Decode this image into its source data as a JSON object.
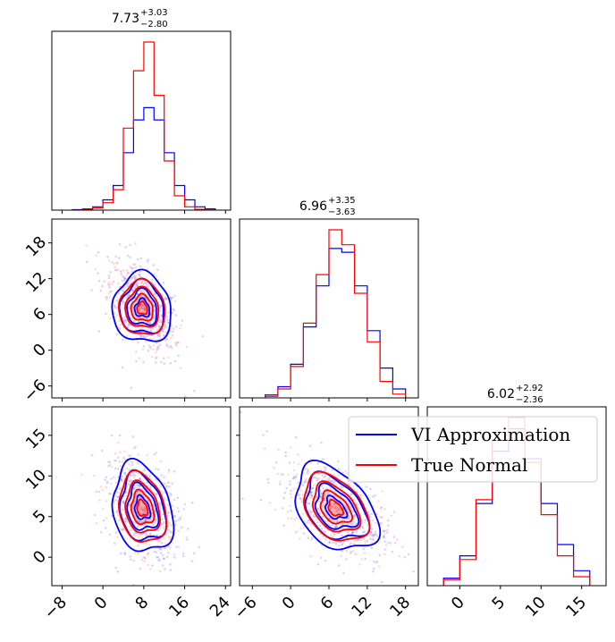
{
  "chart_data": {
    "type": "corner",
    "description_labels": {
      "titles": [
        {
          "value": "7.73",
          "plus": "+3.03",
          "minus": "−2.80"
        },
        {
          "value": "6.96",
          "plus": "+3.35",
          "minus": "−3.63"
        },
        {
          "value": "6.02",
          "plus": "+2.92",
          "minus": "−2.36"
        }
      ]
    },
    "legend": {
      "placement": "upper-right of bottom row",
      "entries": [
        {
          "name": "VI Approximation",
          "color": "#0000ff"
        },
        {
          "name": "True Normal",
          "color": "#ff0000"
        }
      ]
    },
    "axes": {
      "x0": {
        "range": [
          -10,
          25
        ],
        "ticks": [
          -8,
          0,
          8,
          16,
          24
        ],
        "tick_labels": [
          "−8",
          "0",
          "8",
          "16",
          "24"
        ]
      },
      "x1": {
        "range": [
          -8,
          20
        ],
        "ticks": [
          -6,
          0,
          6,
          12,
          18
        ],
        "tick_labels": [
          "−6",
          "0",
          "6",
          "12",
          "18"
        ]
      },
      "x2": {
        "range": [
          -4,
          18
        ],
        "ticks": [
          0,
          5,
          10,
          15
        ],
        "tick_labels": [
          "0",
          "5",
          "10",
          "15"
        ]
      },
      "y1": {
        "range": [
          -8,
          22
        ],
        "ticks": [
          -6,
          0,
          6,
          12,
          18
        ],
        "tick_labels": [
          "−6",
          "0",
          "6",
          "12",
          "18"
        ]
      },
      "y2": {
        "range": [
          -3.5,
          18.5
        ],
        "ticks": [
          0,
          5,
          10,
          15
        ],
        "tick_labels": [
          "0",
          "5",
          "10",
          "15"
        ]
      }
    },
    "histograms": [
      {
        "param": 0,
        "bin_edges": [
          -6,
          -4,
          -2,
          0,
          2,
          4,
          6,
          8,
          10,
          12,
          14,
          16,
          18,
          20,
          22
        ],
        "series": [
          {
            "name": "VI Approximation",
            "color": "#0000ff",
            "counts": [
              1,
              3,
              8,
              25,
              60,
              140,
              220,
              250,
              220,
              140,
              60,
              25,
              8,
              3
            ]
          },
          {
            "name": "True Normal",
            "color": "#ff0000",
            "counts": [
              0,
              2,
              5,
              18,
              50,
              200,
              340,
              410,
              280,
              120,
              35,
              8,
              2,
              0
            ]
          }
        ]
      },
      {
        "param": 1,
        "bin_edges": [
          -4,
          -2,
          0,
          2,
          4,
          6,
          8,
          10,
          12,
          14,
          16,
          18
        ],
        "series": [
          {
            "name": "VI Approximation",
            "color": "#0000ff",
            "counts": [
              4,
              15,
              45,
              95,
              150,
              200,
              195,
              150,
              90,
              40,
              12
            ]
          },
          {
            "name": "True Normal",
            "color": "#ff0000",
            "counts": [
              2,
              12,
              42,
              100,
              165,
              225,
              205,
              140,
              75,
              22,
              5
            ]
          }
        ]
      },
      {
        "param": 2,
        "bin_edges": [
          -2,
          0,
          2,
          4,
          6,
          8,
          10,
          12,
          14,
          16
        ],
        "series": [
          {
            "name": "VI Approximation",
            "color": "#0000ff",
            "counts": [
              10,
              40,
              110,
              180,
              210,
              170,
              110,
              55,
              20
            ]
          },
          {
            "name": "True Normal",
            "color": "#ff0000",
            "counts": [
              8,
              35,
              115,
              195,
              225,
              165,
              95,
              40,
              12
            ]
          }
        ]
      }
    ],
    "contour_panels": [
      {
        "x_param": 0,
        "y_param": 1,
        "center": [
          7.7,
          7.0
        ],
        "correlation": -0.55
      },
      {
        "x_param": 0,
        "y_param": 2,
        "center": [
          7.7,
          6.0
        ],
        "correlation": -0.35
      },
      {
        "x_param": 1,
        "y_param": 2,
        "center": [
          7.0,
          6.0
        ],
        "correlation": -0.5
      }
    ]
  }
}
